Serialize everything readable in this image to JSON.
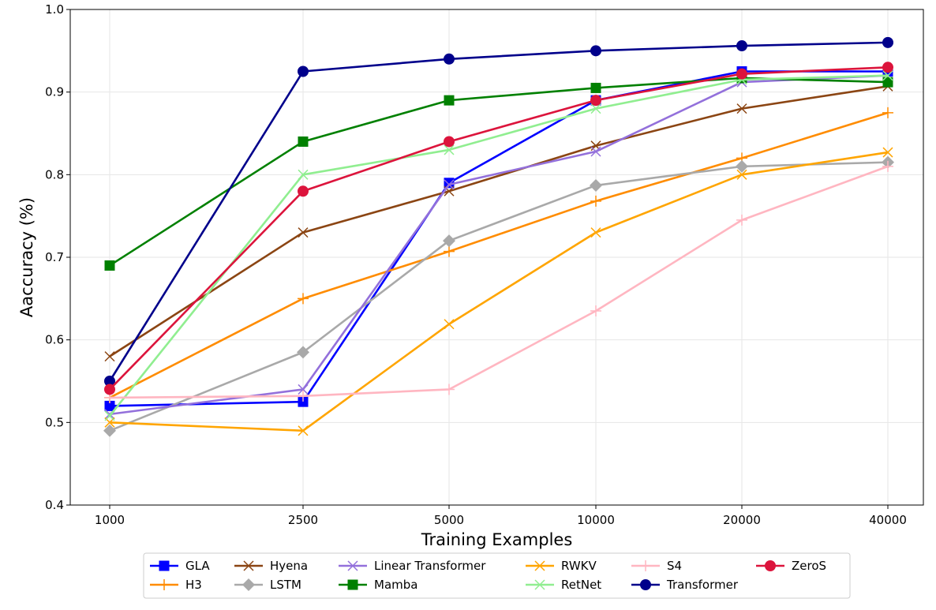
{
  "chart_data": {
    "type": "line",
    "title": "",
    "xlabel": "Training Examples",
    "ylabel": "Aaccuracy (%)",
    "categories": [
      "1000",
      "2500",
      "5000",
      "10000",
      "20000",
      "40000"
    ],
    "ylim": [
      0.4,
      1.0
    ],
    "yticks": [
      "0.4",
      "0.5",
      "0.6",
      "0.7",
      "0.8",
      "0.9",
      "1.0"
    ],
    "grid": true,
    "legend_position": "bottom",
    "series": [
      {
        "name": "GLA",
        "color": "#0000ff",
        "marker": "square",
        "values": [
          0.52,
          0.525,
          0.79,
          0.89,
          0.925,
          0.925
        ]
      },
      {
        "name": "H3",
        "color": "#ff8c00",
        "marker": "plus",
        "values": [
          0.53,
          0.65,
          0.707,
          0.768,
          0.82,
          0.875
        ]
      },
      {
        "name": "Hyena",
        "color": "#8b4513",
        "marker": "x",
        "values": [
          0.58,
          0.73,
          0.78,
          0.835,
          0.88,
          0.907
        ]
      },
      {
        "name": "LSTM",
        "color": "#a9a9a9",
        "marker": "diamond",
        "values": [
          0.49,
          0.585,
          0.72,
          0.787,
          0.81,
          0.815
        ]
      },
      {
        "name": "Linear Transformer",
        "color": "#9370db",
        "marker": "x",
        "values": [
          0.51,
          0.54,
          0.788,
          0.828,
          0.912,
          0.92
        ]
      },
      {
        "name": "Mamba",
        "color": "#008000",
        "marker": "square",
        "values": [
          0.69,
          0.84,
          0.89,
          0.905,
          0.917,
          0.912
        ]
      },
      {
        "name": "RWKV",
        "color": "#ffa500",
        "marker": "x",
        "values": [
          0.5,
          0.49,
          0.619,
          0.73,
          0.8,
          0.827
        ]
      },
      {
        "name": "RetNet",
        "color": "#90ee90",
        "marker": "x",
        "values": [
          0.508,
          0.8,
          0.83,
          0.88,
          0.915,
          0.92
        ]
      },
      {
        "name": "S4",
        "color": "#ffb6c1",
        "marker": "plus",
        "values": [
          0.53,
          0.532,
          0.54,
          0.635,
          0.745,
          0.81
        ]
      },
      {
        "name": "Transformer",
        "color": "#00008b",
        "marker": "circle",
        "values": [
          0.55,
          0.925,
          0.94,
          0.95,
          0.956,
          0.96
        ]
      },
      {
        "name": "ZeroS",
        "color": "#dc143c",
        "marker": "circle",
        "values": [
          0.54,
          0.78,
          0.84,
          0.89,
          0.922,
          0.93
        ]
      }
    ]
  }
}
